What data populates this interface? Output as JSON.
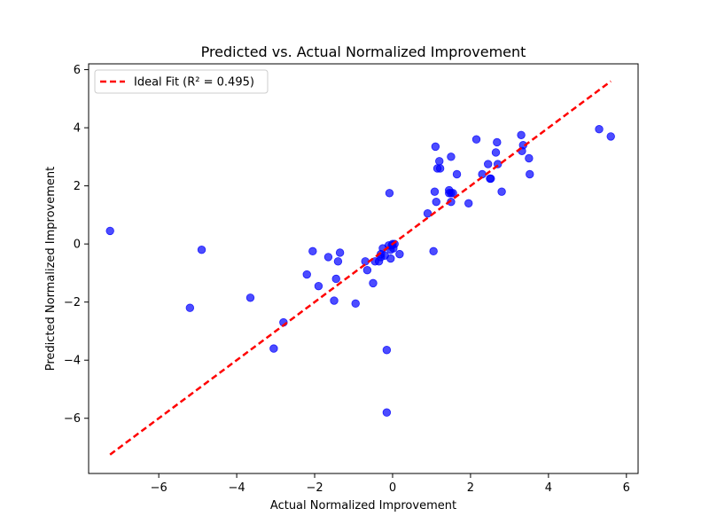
{
  "chart_data": {
    "type": "scatter",
    "title": "Predicted vs. Actual Normalized Improvement",
    "xlabel": "Actual Normalized Improvement",
    "ylabel": "Predicted Normalized Improvement",
    "xlim": [
      -7.8,
      6.3
    ],
    "ylim": [
      -7.9,
      6.2
    ],
    "xticks": [
      -6,
      -4,
      -2,
      0,
      2,
      4,
      6
    ],
    "yticks": [
      -6,
      -4,
      -2,
      0,
      2,
      4,
      6
    ],
    "xtick_labels": [
      "−6",
      "−4",
      "−2",
      "0",
      "2",
      "4",
      "6"
    ],
    "ytick_labels": [
      "−6",
      "−4",
      "−2",
      "0",
      "2",
      "4",
      "6"
    ],
    "grid": false,
    "legend_position": "top-left",
    "series": [
      {
        "kind": "points",
        "color": "#0000ff",
        "x": [
          -7.25,
          -5.2,
          -4.9,
          -3.65,
          -3.05,
          -2.8,
          -2.2,
          -2.05,
          -1.9,
          -1.65,
          -1.5,
          -1.45,
          -1.4,
          -1.35,
          -0.95,
          -0.7,
          -0.65,
          -0.5,
          -0.45,
          -0.35,
          -0.3,
          -0.3,
          -0.25,
          -0.2,
          -0.15,
          -0.15,
          -0.1,
          -0.08,
          -0.05,
          -0.05,
          -0.02,
          0.0,
          0.02,
          0.05,
          0.18,
          0.9,
          1.05,
          1.08,
          1.1,
          1.12,
          1.15,
          1.2,
          1.22,
          1.45,
          1.45,
          1.5,
          1.5,
          1.5,
          1.55,
          1.65,
          1.95,
          2.15,
          2.3,
          2.45,
          2.5,
          2.52,
          2.65,
          2.68,
          2.7,
          2.8,
          3.3,
          3.32,
          3.35,
          3.5,
          3.52,
          5.3,
          5.6
        ],
        "y": [
          0.45,
          -2.2,
          -0.2,
          -1.85,
          -3.6,
          -2.7,
          -1.05,
          -0.25,
          -1.45,
          -0.45,
          -1.95,
          -1.2,
          -0.6,
          -0.3,
          -2.05,
          -0.6,
          -0.9,
          -1.35,
          -0.6,
          -0.6,
          -0.45,
          -0.35,
          -0.15,
          -0.4,
          -3.65,
          -5.8,
          -0.05,
          1.75,
          -0.2,
          -0.5,
          -0.05,
          0.0,
          -0.15,
          0.0,
          -0.35,
          1.05,
          -0.25,
          1.8,
          3.35,
          1.45,
          2.6,
          2.85,
          2.6,
          1.85,
          1.75,
          3.0,
          1.75,
          1.45,
          1.75,
          2.4,
          1.4,
          3.6,
          2.4,
          2.75,
          2.25,
          2.25,
          3.15,
          3.5,
          2.75,
          1.8,
          3.75,
          3.2,
          3.4,
          2.95,
          2.4,
          3.95,
          3.7
        ]
      },
      {
        "kind": "line",
        "name": "Ideal Fit (R² = 0.495)",
        "color": "#ff0000",
        "x": [
          -7.25,
          5.6
        ],
        "y": [
          -7.25,
          5.6
        ]
      }
    ]
  }
}
